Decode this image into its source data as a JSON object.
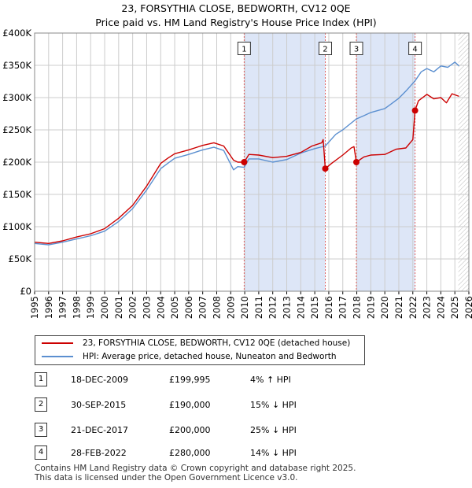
{
  "title": {
    "line1": "23, FORSYTHIA CLOSE, BEDWORTH, CV12 0QE",
    "line2": "Price paid vs. HM Land Registry's House Price Index (HPI)"
  },
  "chart_data": {
    "type": "line",
    "x_range": [
      1995,
      2026
    ],
    "y_range": [
      0,
      400000
    ],
    "y_ticks": [
      {
        "value": 0,
        "label": "£0"
      },
      {
        "value": 50000,
        "label": "£50K"
      },
      {
        "value": 100000,
        "label": "£100K"
      },
      {
        "value": 150000,
        "label": "£150K"
      },
      {
        "value": 200000,
        "label": "£200K"
      },
      {
        "value": 250000,
        "label": "£250K"
      },
      {
        "value": 300000,
        "label": "£300K"
      },
      {
        "value": 350000,
        "label": "£350K"
      },
      {
        "value": 400000,
        "label": "£400K"
      }
    ],
    "x_ticks": [
      "1995",
      "1996",
      "1997",
      "1998",
      "1999",
      "2000",
      "2001",
      "2002",
      "2003",
      "2004",
      "2005",
      "2006",
      "2007",
      "2008",
      "2009",
      "2010",
      "2011",
      "2012",
      "2013",
      "2014",
      "2015",
      "2016",
      "2017",
      "2018",
      "2019",
      "2020",
      "2021",
      "2022",
      "2023",
      "2024",
      "2025",
      "2026"
    ],
    "shaded_periods": [
      [
        2009.96,
        2015.75
      ],
      [
        2017.97,
        2022.16
      ]
    ],
    "future_hatch_from": 2025.25,
    "colors": {
      "property": "#cc0000",
      "hpi": "#5b8fd0",
      "shade": "#dde6f7",
      "marker_line": "#e06060"
    },
    "series": [
      {
        "name": "23, FORSYTHIA CLOSE, BEDWORTH, CV12 0QE (detached house)",
        "color": "#cc0000",
        "points": [
          [
            1995.0,
            76000
          ],
          [
            1996.0,
            74000
          ],
          [
            1997.0,
            78000
          ],
          [
            1998.0,
            84000
          ],
          [
            1999.0,
            89000
          ],
          [
            2000.0,
            97000
          ],
          [
            2001.0,
            113000
          ],
          [
            2002.0,
            133000
          ],
          [
            2003.0,
            163000
          ],
          [
            2004.0,
            198000
          ],
          [
            2004.5,
            206000
          ],
          [
            2005.0,
            213000
          ],
          [
            2006.0,
            219000
          ],
          [
            2007.0,
            226000
          ],
          [
            2007.8,
            230000
          ],
          [
            2008.5,
            225000
          ],
          [
            2009.2,
            203000
          ],
          [
            2009.5,
            200000
          ],
          [
            2009.96,
            199995
          ],
          [
            2010.3,
            212000
          ],
          [
            2011.0,
            211000
          ],
          [
            2012.0,
            207000
          ],
          [
            2013.0,
            209000
          ],
          [
            2014.0,
            215000
          ],
          [
            2014.8,
            225000
          ],
          [
            2015.5,
            230000
          ],
          [
            2015.6,
            235000
          ],
          [
            2015.75,
            190000
          ],
          [
            2016.2,
            198000
          ],
          [
            2017.0,
            211000
          ],
          [
            2017.6,
            222000
          ],
          [
            2017.8,
            224000
          ],
          [
            2017.97,
            200000
          ],
          [
            2018.5,
            208000
          ],
          [
            2019.0,
            211000
          ],
          [
            2020.0,
            212000
          ],
          [
            2020.8,
            220000
          ],
          [
            2021.5,
            222000
          ],
          [
            2022.0,
            235000
          ],
          [
            2022.16,
            280000
          ],
          [
            2022.4,
            295000
          ],
          [
            2023.0,
            305000
          ],
          [
            2023.5,
            298000
          ],
          [
            2024.0,
            300000
          ],
          [
            2024.4,
            292000
          ],
          [
            2024.8,
            306000
          ],
          [
            2025.3,
            302000
          ]
        ]
      },
      {
        "name": "HPI: Average price, detached house, Nuneaton and Bedworth",
        "color": "#5b8fd0",
        "points": [
          [
            1995.0,
            74000
          ],
          [
            1996.0,
            72000
          ],
          [
            1997.0,
            76000
          ],
          [
            1998.0,
            81000
          ],
          [
            1999.0,
            86000
          ],
          [
            2000.0,
            93000
          ],
          [
            2001.0,
            108000
          ],
          [
            2002.0,
            128000
          ],
          [
            2003.0,
            157000
          ],
          [
            2004.0,
            190000
          ],
          [
            2004.5,
            198000
          ],
          [
            2005.0,
            206000
          ],
          [
            2006.0,
            212000
          ],
          [
            2007.0,
            219000
          ],
          [
            2007.8,
            223000
          ],
          [
            2008.5,
            218000
          ],
          [
            2009.2,
            188000
          ],
          [
            2009.5,
            193000
          ],
          [
            2009.96,
            192000
          ],
          [
            2010.3,
            205000
          ],
          [
            2011.0,
            205000
          ],
          [
            2012.0,
            200000
          ],
          [
            2013.0,
            204000
          ],
          [
            2014.0,
            214000
          ],
          [
            2015.0,
            221000
          ],
          [
            2015.75,
            225000
          ],
          [
            2016.5,
            243000
          ],
          [
            2017.0,
            250000
          ],
          [
            2017.97,
            267000
          ],
          [
            2018.5,
            272000
          ],
          [
            2019.0,
            277000
          ],
          [
            2020.0,
            283000
          ],
          [
            2020.5,
            291000
          ],
          [
            2021.0,
            299000
          ],
          [
            2021.5,
            310000
          ],
          [
            2022.16,
            326000
          ],
          [
            2022.6,
            340000
          ],
          [
            2023.0,
            345000
          ],
          [
            2023.5,
            340000
          ],
          [
            2024.0,
            349000
          ],
          [
            2024.5,
            347000
          ],
          [
            2025.0,
            355000
          ],
          [
            2025.3,
            349000
          ]
        ]
      }
    ],
    "transactions": [
      {
        "num": "1",
        "x": 2009.96,
        "y": 199995
      },
      {
        "num": "2",
        "x": 2015.75,
        "y": 190000
      },
      {
        "num": "3",
        "x": 2017.97,
        "y": 200000
      },
      {
        "num": "4",
        "x": 2022.16,
        "y": 280000
      }
    ],
    "label_box_price": 375000
  },
  "legend": {
    "property": "23, FORSYTHIA CLOSE, BEDWORTH, CV12 0QE (detached house)",
    "hpi": "HPI: Average price, detached house, Nuneaton and Bedworth"
  },
  "table": [
    {
      "num": "1",
      "date": "18-DEC-2009",
      "price": "£199,995",
      "hpi": "4% ↑ HPI"
    },
    {
      "num": "2",
      "date": "30-SEP-2015",
      "price": "£190,000",
      "hpi": "15% ↓ HPI"
    },
    {
      "num": "3",
      "date": "21-DEC-2017",
      "price": "£200,000",
      "hpi": "25% ↓ HPI"
    },
    {
      "num": "4",
      "date": "28-FEB-2022",
      "price": "£280,000",
      "hpi": "14% ↓ HPI"
    }
  ],
  "footer": {
    "line1": "Contains HM Land Registry data © Crown copyright and database right 2025.",
    "line2": "This data is licensed under the Open Government Licence v3.0."
  }
}
